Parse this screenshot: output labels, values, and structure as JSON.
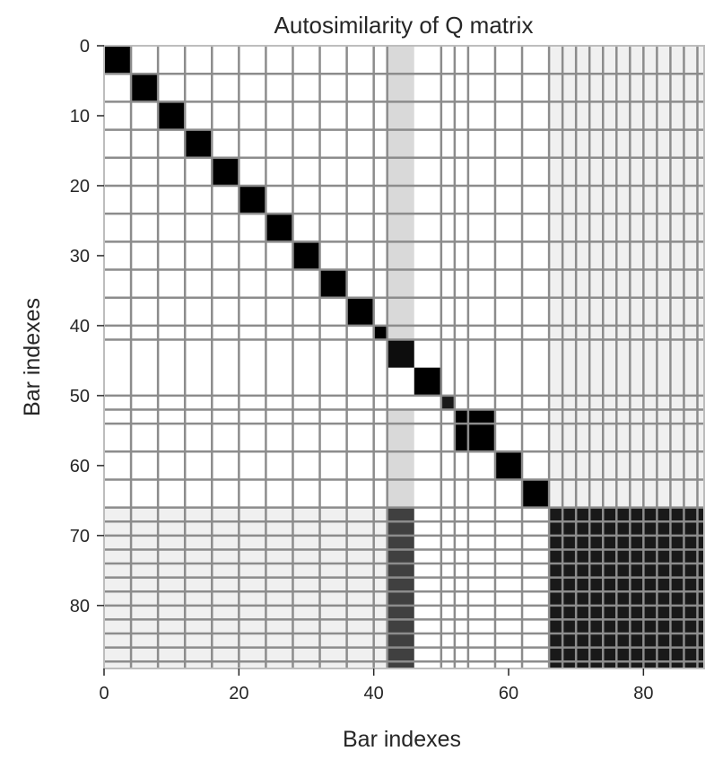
{
  "chart_data": {
    "type": "heatmap",
    "title": "Autosimilarity of Q matrix",
    "xlabel": "Bar indexes",
    "ylabel": "Bar indexes",
    "n": 89,
    "xlim": [
      0,
      89
    ],
    "ylim": [
      0,
      89
    ],
    "x_ticks": [
      0,
      20,
      40,
      60,
      80
    ],
    "y_ticks": [
      0,
      10,
      20,
      30,
      40,
      50,
      60,
      70,
      80
    ],
    "x_tick_labels": [
      "0",
      "20",
      "40",
      "60",
      "80"
    ],
    "y_tick_labels": [
      "0",
      "10",
      "20",
      "30",
      "40",
      "50",
      "60",
      "70",
      "80"
    ],
    "y_axis_inverted": true,
    "colormap": "gray_r",
    "value_range": [
      0,
      1
    ],
    "grid": true,
    "grid_color": "#8c8c8c",
    "grid_lines": [
      4,
      8,
      12,
      16,
      20,
      24,
      28,
      32,
      36,
      40,
      42,
      50,
      52,
      54,
      58,
      62,
      66,
      68,
      70,
      72,
      74,
      76,
      78,
      80,
      82,
      84,
      86,
      88
    ],
    "blocks": [
      {
        "rows": [
          0,
          4
        ],
        "cols": [
          0,
          4
        ],
        "value": 1.0
      },
      {
        "rows": [
          4,
          8
        ],
        "cols": [
          4,
          8
        ],
        "value": 1.0
      },
      {
        "rows": [
          8,
          12
        ],
        "cols": [
          8,
          12
        ],
        "value": 1.0
      },
      {
        "rows": [
          12,
          16
        ],
        "cols": [
          12,
          16
        ],
        "value": 1.0
      },
      {
        "rows": [
          16,
          20
        ],
        "cols": [
          16,
          20
        ],
        "value": 1.0
      },
      {
        "rows": [
          20,
          24
        ],
        "cols": [
          20,
          24
        ],
        "value": 1.0
      },
      {
        "rows": [
          24,
          28
        ],
        "cols": [
          24,
          28
        ],
        "value": 1.0
      },
      {
        "rows": [
          28,
          32
        ],
        "cols": [
          28,
          32
        ],
        "value": 1.0
      },
      {
        "rows": [
          32,
          36
        ],
        "cols": [
          32,
          36
        ],
        "value": 1.0
      },
      {
        "rows": [
          36,
          40
        ],
        "cols": [
          36,
          40
        ],
        "value": 1.0
      },
      {
        "rows": [
          40,
          42
        ],
        "cols": [
          40,
          42
        ],
        "value": 1.0
      },
      {
        "rows": [
          42,
          46
        ],
        "cols": [
          42,
          46
        ],
        "value": 0.95
      },
      {
        "rows": [
          46,
          50
        ],
        "cols": [
          46,
          50
        ],
        "value": 1.0
      },
      {
        "rows": [
          50,
          52
        ],
        "cols": [
          50,
          52
        ],
        "value": 0.9
      },
      {
        "rows": [
          52,
          58
        ],
        "cols": [
          52,
          58
        ],
        "value": 1.0
      },
      {
        "rows": [
          58,
          62
        ],
        "cols": [
          58,
          62
        ],
        "value": 1.0
      },
      {
        "rows": [
          62,
          66
        ],
        "cols": [
          62,
          66
        ],
        "value": 1.0
      },
      {
        "rows": [
          66,
          89
        ],
        "cols": [
          66,
          89
        ],
        "value": 0.9
      },
      {
        "rows": [
          42,
          46
        ],
        "cols": [
          66,
          89
        ],
        "value": 0.75
      },
      {
        "rows": [
          66,
          89
        ],
        "cols": [
          42,
          46
        ],
        "value": 0.75
      },
      {
        "rows": [
          0,
          66
        ],
        "cols": [
          66,
          89
        ],
        "value": 0.06
      },
      {
        "rows": [
          66,
          89
        ],
        "cols": [
          0,
          42
        ],
        "value": 0.06
      },
      {
        "rows": [
          0,
          42
        ],
        "cols": [
          42,
          46
        ],
        "value": 0.15
      },
      {
        "rows": [
          52,
          66
        ],
        "cols": [
          42,
          46
        ],
        "value": 0.15
      }
    ]
  }
}
